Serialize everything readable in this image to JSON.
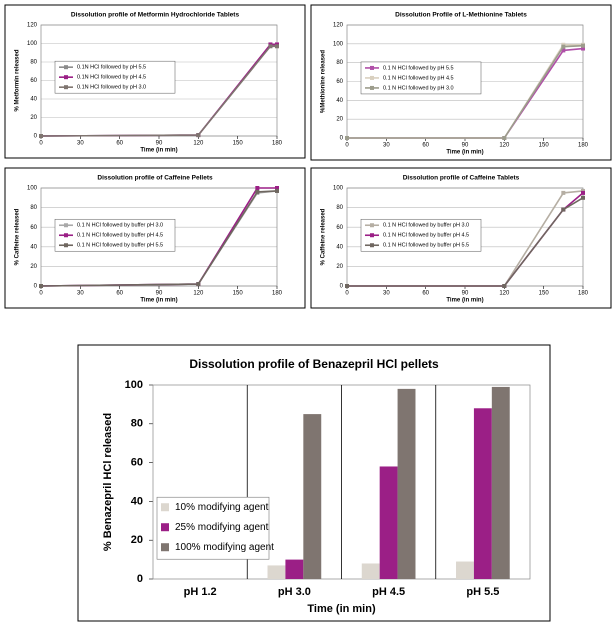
{
  "chart_data": [
    {
      "type": "line",
      "title": "Dissolution profile of Metformin Hydrochloride Tablets",
      "ylabel": "% Metformin released",
      "xlabel": "Time (in min)",
      "x": [
        0,
        120,
        175,
        180
      ],
      "xlim": [
        0,
        180
      ],
      "xticks": [
        0,
        30,
        60,
        90,
        120,
        150,
        180
      ],
      "ylim": [
        0,
        120
      ],
      "yticks": [
        0,
        20,
        40,
        60,
        80,
        100,
        120
      ],
      "grid": true,
      "series": [
        {
          "name": "0.1N HCl followed by pH 5.5",
          "color": "#8c8c8c",
          "values": [
            0,
            1,
            98,
            98
          ]
        },
        {
          "name": "0.1N HCl followed by pH 4.5",
          "color": "#9b1f86",
          "values": [
            0,
            1,
            99,
            99
          ]
        },
        {
          "name": "0.1N HCl followed by pH 3.0",
          "color": "#7f7570",
          "values": [
            0,
            1,
            97,
            97
          ]
        }
      ]
    },
    {
      "type": "line",
      "title": "Dissolution Profile of L-Methionine Tablets",
      "ylabel": "%Methionine released",
      "xlabel": "Time (in min)",
      "x": [
        0,
        120,
        165,
        180
      ],
      "xlim": [
        0,
        180
      ],
      "xticks": [
        0,
        30,
        60,
        90,
        120,
        150,
        180
      ],
      "ylim": [
        0,
        120
      ],
      "yticks": [
        0,
        20,
        40,
        60,
        80,
        100,
        120
      ],
      "grid": true,
      "series": [
        {
          "name": "0.1 N HCl followed by pH 5.5",
          "color": "#b04fa8",
          "values": [
            0,
            0,
            93,
            95
          ]
        },
        {
          "name": "0.1 N HCl followed by pH 4.5",
          "color": "#d9d0bf",
          "values": [
            0,
            0,
            99,
            99
          ]
        },
        {
          "name": "0.1 N HCl followed by pH 3.0",
          "color": "#9c9c8c",
          "values": [
            0,
            0,
            97,
            98
          ]
        }
      ]
    },
    {
      "type": "line",
      "title": "Dissolution profile of Caffeine Pellets",
      "ylabel": "% Caffeine released",
      "xlabel": "Time (in min)",
      "x": [
        0,
        120,
        165,
        180
      ],
      "xlim": [
        0,
        180
      ],
      "xticks": [
        0,
        30,
        60,
        90,
        120,
        150,
        180
      ],
      "ylim": [
        0,
        100
      ],
      "yticks": [
        0,
        20,
        40,
        60,
        80,
        100
      ],
      "grid": true,
      "series": [
        {
          "name": "0.1 N HCl followed by buffer pH 3.0",
          "color": "#a9a9a9",
          "values": [
            0,
            2,
            95,
            97
          ]
        },
        {
          "name": "0.1 N HCl followed by buffer pH 4.5",
          "color": "#9b1f86",
          "values": [
            0,
            2,
            100,
            100
          ]
        },
        {
          "name": "0.1 N HCl followed by buffer pH 5.5",
          "color": "#6f6760",
          "values": [
            0,
            2,
            96,
            97
          ]
        }
      ]
    },
    {
      "type": "line",
      "title": "Dissolution profile of Caffeine Tablets",
      "ylabel": "% Caffeine released",
      "xlabel": "Time (in min)",
      "x": [
        0,
        120,
        165,
        180
      ],
      "xlim": [
        0,
        180
      ],
      "xticks": [
        0,
        30,
        60,
        90,
        120,
        150,
        180
      ],
      "ylim": [
        0,
        100
      ],
      "yticks": [
        0,
        20,
        40,
        60,
        80,
        100
      ],
      "grid": true,
      "series": [
        {
          "name": "0.1 N HCl followed by buffer pH 3.0",
          "color": "#b5aea3",
          "values": [
            0,
            0,
            95,
            97
          ]
        },
        {
          "name": "0.1 N HCl followed by buffer pH 4.5",
          "color": "#9b1f86",
          "values": [
            0,
            0,
            78,
            95
          ]
        },
        {
          "name": "0.1 N HCl followed by buffer pH 5.5",
          "color": "#6f6760",
          "values": [
            0,
            0,
            78,
            90
          ]
        }
      ]
    },
    {
      "type": "bar",
      "title": "Dissolution profile of Benazepril HCl pellets",
      "ylabel": "% Benazepril HCl released",
      "xlabel": "Time (in min)",
      "categories": [
        "pH 1.2",
        "pH 3.0",
        "pH 4.5",
        "pH 5.5"
      ],
      "ylim": [
        0,
        100
      ],
      "yticks": [
        0,
        20,
        40,
        60,
        80,
        100
      ],
      "series": [
        {
          "name": "10% modifying agent",
          "color": "#dcd7cf",
          "values": [
            0,
            7,
            8,
            9
          ]
        },
        {
          "name": "25% modifying agent",
          "color": "#9b1f86",
          "values": [
            0,
            10,
            58,
            88
          ]
        },
        {
          "name": "100% modifying agent",
          "color": "#7f7570",
          "values": [
            0,
            85,
            98,
            99
          ]
        }
      ]
    }
  ]
}
